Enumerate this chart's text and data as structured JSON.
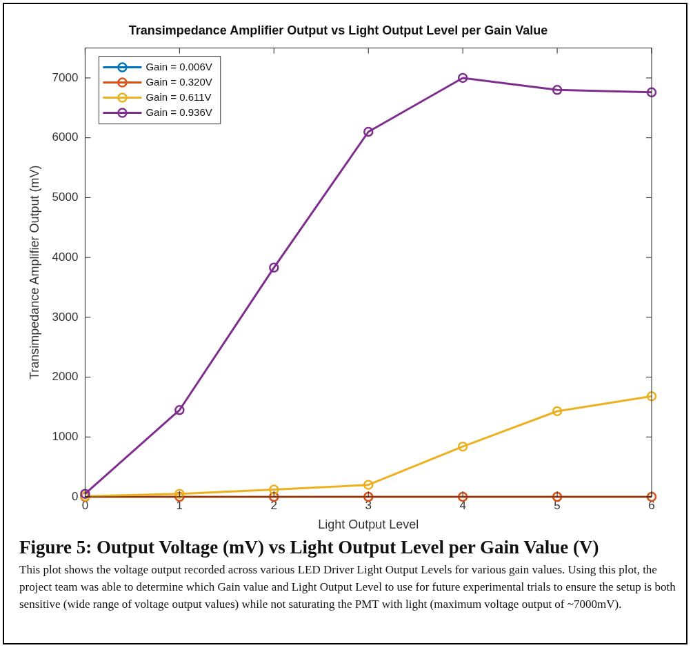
{
  "chart_data": {
    "type": "line",
    "title": "Transimpedance Amplifier Output vs Light Output Level per Gain Value",
    "xlabel": "Light Output Level",
    "ylabel": "Transimpedance Amplifier Output (mV)",
    "x": [
      0,
      1,
      2,
      3,
      4,
      5,
      6
    ],
    "series": [
      {
        "name": "Gain = 0.006V",
        "color": "#0072bd",
        "values": [
          null,
          null,
          null,
          null,
          null,
          null,
          null
        ]
      },
      {
        "name": "Gain = 0.320V",
        "color": "#d95319",
        "values": [
          0,
          0,
          0,
          0,
          0,
          0,
          0
        ]
      },
      {
        "name": "Gain = 0.611V",
        "color": "#edb120",
        "values": [
          10,
          50,
          120,
          200,
          840,
          1430,
          1680
        ]
      },
      {
        "name": "Gain = 0.936V",
        "color": "#7e2f8e",
        "values": [
          50,
          1450,
          3830,
          6100,
          7000,
          6800,
          6760
        ]
      }
    ],
    "xlim": [
      0,
      6
    ],
    "xticks": [
      0,
      1,
      2,
      3,
      4,
      5,
      6
    ],
    "ylim": [
      0,
      7500
    ],
    "yticks": [
      0,
      1000,
      2000,
      3000,
      4000,
      5000,
      6000,
      7000
    ],
    "grid": false,
    "legend": "top left",
    "marker": "circle",
    "line_style": "solid",
    "annotations": [
      "Figure 5: Output Voltage (mV) vs Light Output Level per Gain Value (V)",
      "This plot shows the voltage output recorded across various LED Driver Light Output Levels for various gain values. Using this plot, the project team was  able to determine which Gain value and Light Output Level to use for future experimental trials to ensure the setup is both sensitive (wide range of voltage output values) while not saturating the PMT with light (maximum voltage output of ~7000mV)."
    ]
  }
}
